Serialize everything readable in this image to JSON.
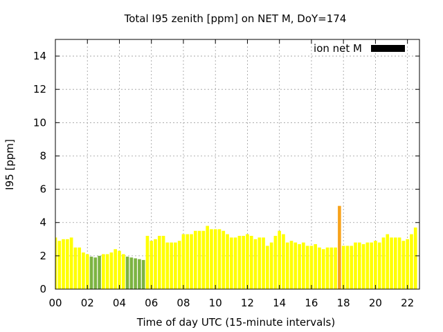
{
  "chart_data": {
    "type": "bar",
    "title": "Total I95 zenith [ppm] on NET M, DoY=174",
    "xlabel": "Time of day UTC (15-minute intervals)",
    "ylabel": "I95 [ppm]",
    "xlim": [
      0,
      22.75
    ],
    "ylim": [
      0,
      15
    ],
    "grid": true,
    "legend": {
      "position": "top-right",
      "entries": [
        {
          "label": "ion net M",
          "color": "#000000"
        }
      ]
    },
    "x_ticks": [
      {
        "value": 0,
        "label": "00"
      },
      {
        "value": 2,
        "label": "02"
      },
      {
        "value": 4,
        "label": "04"
      },
      {
        "value": 6,
        "label": "06"
      },
      {
        "value": 8,
        "label": "08"
      },
      {
        "value": 10,
        "label": "10"
      },
      {
        "value": 12,
        "label": "12"
      },
      {
        "value": 14,
        "label": "14"
      },
      {
        "value": 16,
        "label": "16"
      },
      {
        "value": 18,
        "label": "18"
      },
      {
        "value": 20,
        "label": "20"
      },
      {
        "value": 22,
        "label": "22"
      }
    ],
    "y_ticks": [
      {
        "value": 0,
        "label": "0"
      },
      {
        "value": 2,
        "label": "2"
      },
      {
        "value": 4,
        "label": "4"
      },
      {
        "value": 6,
        "label": "6"
      },
      {
        "value": 8,
        "label": "8"
      },
      {
        "value": 10,
        "label": "10"
      },
      {
        "value": 12,
        "label": "12"
      },
      {
        "value": 14,
        "label": "14"
      }
    ],
    "colors": {
      "normal": "#ffff00",
      "low": "#7cb342",
      "high": "#f7a31c"
    },
    "bar_interval_hours": 0.25,
    "values": [
      3.1,
      2.9,
      3.0,
      3.0,
      3.1,
      2.5,
      2.5,
      2.2,
      2.1,
      1.95,
      1.9,
      2.0,
      2.1,
      2.1,
      2.2,
      2.4,
      2.3,
      2.1,
      1.95,
      1.9,
      1.85,
      1.8,
      1.75,
      3.2,
      2.9,
      3.0,
      3.2,
      3.2,
      2.8,
      2.8,
      2.8,
      2.9,
      3.3,
      3.3,
      3.3,
      3.5,
      3.5,
      3.5,
      3.8,
      3.6,
      3.6,
      3.6,
      3.5,
      3.3,
      3.1,
      3.1,
      3.2,
      3.2,
      3.3,
      3.2,
      3.0,
      3.1,
      3.1,
      2.6,
      2.8,
      3.2,
      3.5,
      3.3,
      2.8,
      2.9,
      2.8,
      2.7,
      2.8,
      2.6,
      2.6,
      2.7,
      2.5,
      2.4,
      2.5,
      2.5,
      2.5,
      5.0,
      2.6,
      2.6,
      2.6,
      2.8,
      2.8,
      2.7,
      2.8,
      2.8,
      2.9,
      2.8,
      3.1,
      3.3,
      3.1,
      3.1,
      3.1,
      2.9,
      3.0,
      3.3,
      3.7
    ],
    "bar_colors": [
      "normal",
      "normal",
      "normal",
      "normal",
      "normal",
      "normal",
      "normal",
      "normal",
      "normal",
      "low",
      "low",
      "low",
      "normal",
      "normal",
      "normal",
      "normal",
      "normal",
      "normal",
      "low",
      "low",
      "low",
      "low",
      "low",
      "normal",
      "normal",
      "normal",
      "normal",
      "normal",
      "normal",
      "normal",
      "normal",
      "normal",
      "normal",
      "normal",
      "normal",
      "normal",
      "normal",
      "normal",
      "normal",
      "normal",
      "normal",
      "normal",
      "normal",
      "normal",
      "normal",
      "normal",
      "normal",
      "normal",
      "normal",
      "normal",
      "normal",
      "normal",
      "normal",
      "normal",
      "normal",
      "normal",
      "normal",
      "normal",
      "normal",
      "normal",
      "normal",
      "normal",
      "normal",
      "normal",
      "normal",
      "normal",
      "normal",
      "normal",
      "normal",
      "normal",
      "normal",
      "high",
      "normal",
      "normal",
      "normal",
      "normal",
      "normal",
      "normal",
      "normal",
      "normal",
      "normal",
      "normal",
      "normal",
      "normal",
      "normal",
      "normal",
      "normal",
      "normal",
      "normal",
      "normal",
      "normal"
    ]
  }
}
